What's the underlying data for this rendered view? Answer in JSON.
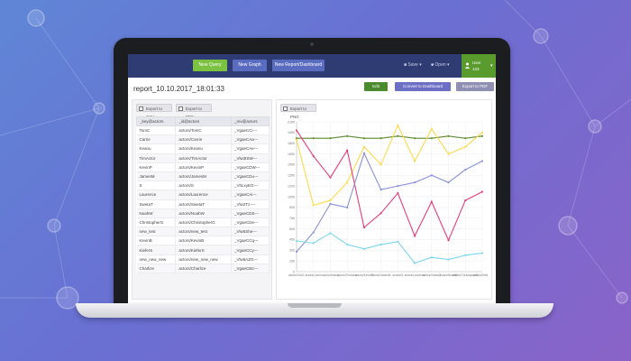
{
  "nav": {
    "new_query": "New Query",
    "new_graph": "New Graph",
    "new_report": "New Report/Dashboard",
    "save": "Save",
    "open": "Open",
    "user_name": "User",
    "user_sub": "123"
  },
  "report": {
    "title": "report_10.10.2017_18:01:33",
    "edit": "Edit",
    "convert": "Convert to Dashboard",
    "export_pdf_top": "Export to PDF"
  },
  "table_panel": {
    "export_csv": "Export to CSV",
    "export_pdf": "Export to PDF",
    "headers": [
      "_key@actors",
      "_id@actors",
      "_rev@actors"
    ],
    "rows": [
      [
        "TomC",
        "actors/TomC",
        "_VgaeCCi---"
      ],
      [
        "Carrie",
        "actors/Carrie",
        "_VgaeCAa---"
      ],
      [
        "Keanu",
        "actors/Keanu",
        "_VgaeCAe---"
      ],
      [
        "TimActor",
        "actors/TimActor",
        "_Vlw3tSW---"
      ],
      [
        "KevinP",
        "actors/KevinP",
        "_VgaeCDW---"
      ],
      [
        "JamesM",
        "actors/JamesM",
        "_VgaeCDu---"
      ],
      [
        "S",
        "actors/S",
        "_VhLxyEG---"
      ],
      [
        "Laurence",
        "actors/Laurence",
        "_VgaeCAi---"
      ],
      [
        "SwetaT",
        "actors/SwetaT",
        "_Vlw2Tz----"
      ],
      [
        "NoahW",
        "actors/NoahW",
        "_VgaeCDS---"
      ],
      [
        "ChristopherG",
        "actors/ChristopherG",
        "_VgaeCDe---"
      ],
      [
        "new_test",
        "actors/new_test",
        "_Vlw5She---"
      ],
      [
        "KevinB",
        "actors/KevinB",
        "_VgaeCCq---"
      ],
      [
        "KieferS",
        "actors/KieferS",
        "_VgaeCCy---"
      ],
      [
        "new_new_new",
        "actors/new_new_new",
        "_Vlw6AZG---"
      ],
      [
        "Charlize",
        "actors/Charlize",
        "_VgaeCB2---"
      ]
    ]
  },
  "chart_panel": {
    "export_png": "Export to PNG"
  },
  "colors": {
    "navbar": "#2f3b73",
    "green": "#7cc242",
    "blue_btn": "#5a6cc0"
  },
  "chart_data": {
    "type": "line",
    "ylim": [
      0,
      2100
    ],
    "yticks": [
      "0",
      "150",
      "300",
      "450",
      "600",
      "750",
      "900",
      "1050",
      "1200",
      "1350",
      "1500",
      "1650",
      "1800",
      "1950",
      "2100"
    ],
    "categories": [
      "actors/TomC",
      "actors/Carrie",
      "actors/Keanu",
      "actors/TimActor",
      "actors/KevinP",
      "actors/JamesM",
      "actors/S",
      "actors/Laurence",
      "actors/SwetaT",
      "actors/NoahW",
      "actors/ChristopherG",
      "actors/KieferS"
    ],
    "xtick_labels": [
      "actors/TomC",
      "actors/Carrie",
      "actors/Keanu",
      "actors/TimActor",
      "actors/KevinP",
      "actors/JamesM",
      "actors/S",
      "actors/Laurence",
      "actors/SwetaT",
      "actors/NoahW",
      "actors/ChristopherG",
      "actors/KieferS"
    ],
    "series": [
      {
        "color": "#5e8a2e",
        "values": [
          1870,
          1870,
          1870,
          1900,
          1870,
          1870,
          1900,
          1870,
          1870,
          1900,
          1870,
          1900
        ]
      },
      {
        "color": "#ffd94a",
        "values": [
          1850,
          930,
          1000,
          1250,
          1750,
          1500,
          2050,
          1550,
          2000,
          1650,
          1750,
          1950
        ]
      },
      {
        "color": "#e83d74",
        "values": [
          1980,
          1620,
          1320,
          1700,
          620,
          820,
          1100,
          500,
          980,
          440,
          1000,
          1120
        ]
      },
      {
        "color": "#8a92d8",
        "values": [
          280,
          550,
          950,
          900,
          1660,
          1150,
          1200,
          1250,
          1350,
          1250,
          1430,
          1550
        ]
      },
      {
        "color": "#7dd6ee",
        "values": [
          430,
          400,
          540,
          380,
          320,
          380,
          420,
          120,
          200,
          170,
          230,
          260
        ]
      }
    ]
  }
}
